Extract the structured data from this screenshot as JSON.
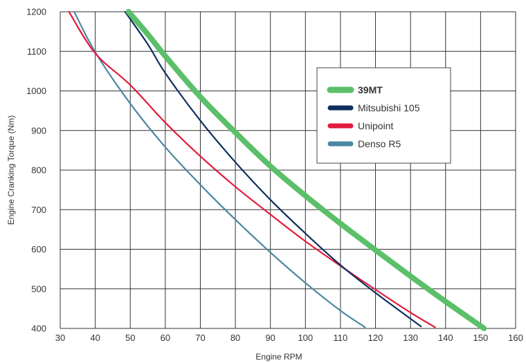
{
  "chart_data": {
    "type": "line",
    "title": "",
    "xlabel": "Engine RPM",
    "ylabel": "Engine Cranking Torque (Nm)",
    "xlim": [
      30,
      160
    ],
    "ylim": [
      400,
      1200
    ],
    "x_ticks": [
      "30",
      "40",
      "50",
      "60",
      "70",
      "80",
      "90",
      "100",
      "110",
      "120",
      "130",
      "140",
      "150",
      "160"
    ],
    "y_ticks": [
      "400",
      "500",
      "600",
      "700",
      "800",
      "900",
      "1000",
      "1100",
      "1200"
    ],
    "grid": true,
    "legend_position": "top-right",
    "series": [
      {
        "name": "39MT",
        "color": "#5cbf6a",
        "bold": true,
        "points": [
          [
            49.5,
            1200
          ],
          [
            55,
            1143
          ],
          [
            60,
            1088
          ],
          [
            70,
            985
          ],
          [
            80,
            895
          ],
          [
            90,
            810
          ],
          [
            100,
            735
          ],
          [
            110,
            665
          ],
          [
            120,
            598
          ],
          [
            130,
            532
          ],
          [
            140,
            468
          ],
          [
            151,
            400
          ]
        ]
      },
      {
        "name": "Mitsubishi 105",
        "color": "#0d2f5e",
        "bold": false,
        "points": [
          [
            48.5,
            1200
          ],
          [
            55,
            1118
          ],
          [
            60,
            1045
          ],
          [
            70,
            925
          ],
          [
            80,
            820
          ],
          [
            90,
            725
          ],
          [
            100,
            640
          ],
          [
            110,
            560
          ],
          [
            120,
            490
          ],
          [
            133,
            405
          ]
        ]
      },
      {
        "name": "Unipoint",
        "color": "#e21a3c",
        "bold": false,
        "points": [
          [
            32.5,
            1200
          ],
          [
            40,
            1095
          ],
          [
            50,
            1015
          ],
          [
            60,
            920
          ],
          [
            70,
            835
          ],
          [
            80,
            758
          ],
          [
            90,
            688
          ],
          [
            100,
            620
          ],
          [
            110,
            558
          ],
          [
            120,
            498
          ],
          [
            130,
            440
          ],
          [
            137,
            403
          ]
        ]
      },
      {
        "name": "Denso R5",
        "color": "#4a87a0",
        "bold": false,
        "points": [
          [
            34,
            1200
          ],
          [
            40,
            1098
          ],
          [
            50,
            968
          ],
          [
            60,
            858
          ],
          [
            70,
            763
          ],
          [
            80,
            675
          ],
          [
            90,
            592
          ],
          [
            100,
            515
          ],
          [
            110,
            445
          ],
          [
            117,
            403
          ]
        ]
      }
    ]
  }
}
